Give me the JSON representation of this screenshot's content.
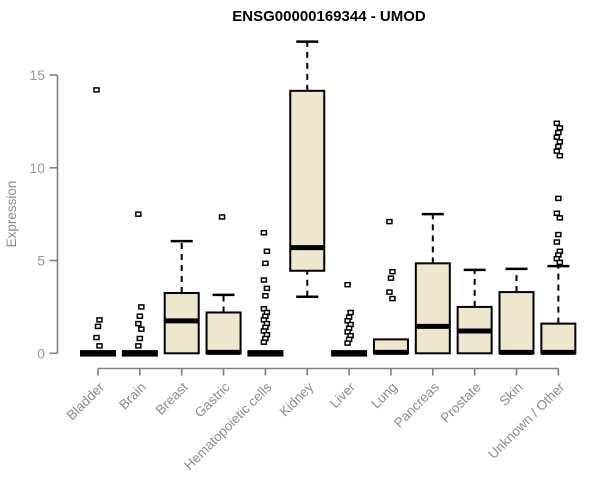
{
  "chart_data": {
    "type": "boxplot",
    "title": "ENSG00000169344 - UMOD",
    "ylabel": "Expression",
    "xlabel": "",
    "yticks": [
      0,
      5,
      10,
      15
    ],
    "ylim": [
      0,
      16.8
    ],
    "grid": false,
    "legend": "none",
    "colors": {
      "box_fill": "#EDE8CD",
      "box_stroke": "#000000",
      "median": "#000000",
      "axis": "#808080",
      "tick_label": "#999999",
      "category_label": "#8C8C8C",
      "title": "#000000",
      "outlier_stroke": "#000000",
      "background": "#FFFFFF"
    },
    "categories": [
      "Bladder",
      "Brain",
      "Breast",
      "Gastric",
      "Hematopoietic cells",
      "Kidney",
      "Liver",
      "Lung",
      "Pancreas",
      "Prostate",
      "Skin",
      "Unknown / Other"
    ],
    "boxes": [
      {
        "label": "Bladder",
        "q1": 0,
        "median": 0,
        "q3": 0,
        "whisker_low": 0,
        "whisker_high": 0,
        "outliers": [
          14.2,
          1.8,
          1.45,
          0.85,
          0.4
        ]
      },
      {
        "label": "Brain",
        "q1": 0,
        "median": 0,
        "q3": 0,
        "whisker_low": 0,
        "whisker_high": 0,
        "outliers": [
          7.5,
          2.5,
          2.0,
          1.6,
          1.3,
          0.8,
          0.4
        ]
      },
      {
        "label": "Breast",
        "q1": 0,
        "median": 1.75,
        "q3": 3.25,
        "whisker_low": 0,
        "whisker_high": 6.05,
        "outliers": []
      },
      {
        "label": "Gastric",
        "q1": 0,
        "median": 0.05,
        "q3": 2.2,
        "whisker_low": 0,
        "whisker_high": 3.15,
        "outliers": [
          7.35
        ]
      },
      {
        "label": "Hematopoietic cells",
        "q1": 0,
        "median": 0,
        "q3": 0,
        "whisker_low": 0,
        "whisker_high": 0,
        "outliers": [
          6.5,
          5.5,
          4.85,
          3.95,
          3.5,
          3.1,
          2.4,
          2.2,
          2.0,
          1.8,
          1.6,
          1.4,
          1.2,
          1.0,
          0.8,
          0.6
        ]
      },
      {
        "label": "Kidney",
        "q1": 4.45,
        "median": 5.7,
        "q3": 14.15,
        "whisker_low": 3.05,
        "whisker_high": 16.8,
        "outliers": []
      },
      {
        "label": "Liver",
        "q1": 0,
        "median": 0,
        "q3": 0,
        "whisker_low": 0,
        "whisker_high": 0,
        "outliers": [
          3.7,
          2.2,
          1.95,
          1.75,
          1.55,
          1.35,
          1.15,
          0.95,
          0.75,
          0.55
        ]
      },
      {
        "label": "Lung",
        "q1": 0,
        "median": 0.05,
        "q3": 0.75,
        "whisker_low": 0,
        "whisker_high": 0.75,
        "outliers": [
          7.1,
          4.4,
          4.05,
          3.3,
          2.95
        ]
      },
      {
        "label": "Pancreas",
        "q1": 0,
        "median": 1.45,
        "q3": 4.85,
        "whisker_low": 0,
        "whisker_high": 7.5,
        "outliers": []
      },
      {
        "label": "Prostate",
        "q1": 0,
        "median": 1.2,
        "q3": 2.5,
        "whisker_low": 0,
        "whisker_high": 4.5,
        "outliers": []
      },
      {
        "label": "Skin",
        "q1": 0,
        "median": 0.05,
        "q3": 3.3,
        "whisker_low": 0,
        "whisker_high": 4.55,
        "outliers": []
      },
      {
        "label": "Unknown / Other",
        "q1": 0,
        "median": 0.05,
        "q3": 1.6,
        "whisker_low": 0,
        "whisker_high": 4.7,
        "outliers": [
          12.4,
          12.15,
          11.9,
          11.65,
          11.4,
          11.15,
          10.9,
          10.65,
          8.35,
          7.55,
          7.3,
          6.4,
          6.0,
          5.5,
          5.3,
          5.1,
          4.9
        ]
      }
    ]
  }
}
